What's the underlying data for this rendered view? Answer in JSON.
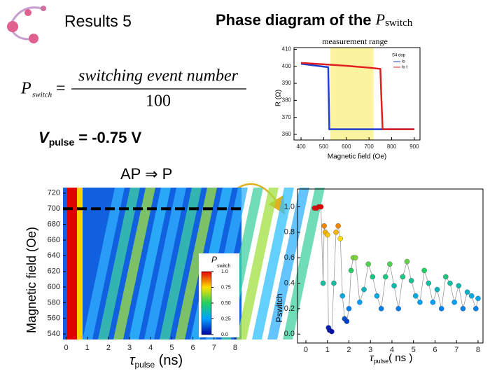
{
  "header": {
    "title": "Results 5",
    "heading": "Phase diagram of the ",
    "heading_var": "P",
    "heading_sub": "switch"
  },
  "formula": {
    "lhs": "P",
    "lhs_sub": "switch",
    "equals": "=",
    "numerator": "switching event number",
    "denominator": "100"
  },
  "vpulse": {
    "symbol": "V",
    "sub": "pulse",
    "rest": "= -0.75 V"
  },
  "transition": "AP ⇒ P",
  "rh_plot": {
    "type": "line",
    "title": "measurement range",
    "x_label": "Magnetic field (Oe)",
    "y_label": "R (Ω)",
    "legend_title": "S4 dop",
    "range": [
      530,
      720
    ],
    "xlim": [
      369,
      925
    ],
    "ylim": [
      356.7,
      411
    ],
    "xticks": [
      400,
      500,
      600,
      700,
      800,
      900
    ],
    "yticks": [
      360,
      370,
      380,
      390,
      400,
      410
    ],
    "series": [
      {
        "name": "lo",
        "color": "#1f3fd0",
        "x": [
          400,
          520,
          525,
          530,
          600,
          700,
          800,
          900
        ],
        "values": [
          401.5,
          399.5,
          363,
          363,
          363,
          363,
          363,
          363
        ]
      },
      {
        "name": "lo t",
        "color": "#e02020",
        "x": [
          400,
          500,
          600,
          700,
          750,
          755,
          760,
          800,
          900
        ],
        "values": [
          402,
          401.2,
          400.3,
          399.2,
          398.5,
          380,
          363,
          363,
          363
        ]
      }
    ]
  },
  "heatmap": {
    "type": "heatmap",
    "x_label": "τ",
    "x_label_sub": "pulse",
    "x_label_unit": " (ns)",
    "y_label": "Magnetic field (Oe)",
    "colorbar_title": "P",
    "colorbar_sub": "switch",
    "marker": 700,
    "xlim": [
      -0.15,
      8.3
    ],
    "ylim": [
      533,
      727
    ],
    "xticks": [
      0,
      1,
      2,
      3,
      4,
      5,
      6,
      7,
      8
    ],
    "yticks": [
      540,
      560,
      580,
      600,
      620,
      640,
      660,
      680,
      700,
      720
    ],
    "cticks": [
      {
        "value": 0,
        "label": "0.0"
      },
      0.25,
      {
        "value": 0.5,
        "label": "0.50"
      },
      0.75,
      {
        "value": 1,
        "label": "1.0"
      }
    ]
  },
  "scatter": {
    "type": "scatter",
    "x_label": "τ",
    "x_label_sub": "pulse",
    "x_label_unit": "( ns )",
    "y_label": "Pswitch",
    "xlim": [
      -0.39,
      8.23
    ],
    "ylim": [
      -0.07,
      1.14
    ],
    "xticks": [
      0,
      1,
      2,
      3,
      4,
      5,
      6,
      7,
      8
    ],
    "yticks": [
      {
        "value": 0,
        "label": "0.0"
      },
      0.2,
      0.4,
      0.6,
      0.8,
      {
        "value": 1,
        "label": "1.0"
      }
    ],
    "x": [
      0.4,
      0.5,
      0.6,
      0.7,
      0.8,
      0.85,
      0.9,
      1.0,
      1.05,
      1.1,
      1.2,
      1.3,
      1.4,
      1.5,
      1.6,
      1.7,
      1.8,
      1.9,
      2.0,
      2.1,
      2.2,
      2.3,
      2.5,
      2.7,
      2.9,
      3.1,
      3.3,
      3.5,
      3.7,
      3.9,
      4.1,
      4.3,
      4.5,
      4.7,
      4.9,
      5.1,
      5.3,
      5.5,
      5.7,
      5.9,
      6.1,
      6.3,
      6.5,
      6.7,
      6.9,
      7.1,
      7.3,
      7.5,
      7.7,
      7.9,
      8.0
    ],
    "values": [
      0.99,
      0.99,
      1.0,
      1.0,
      0.4,
      0.85,
      0.8,
      0.78,
      0.05,
      0.03,
      0.02,
      0.4,
      0.8,
      0.85,
      0.75,
      0.3,
      0.12,
      0.1,
      0.2,
      0.5,
      0.6,
      0.6,
      0.25,
      0.35,
      0.55,
      0.45,
      0.3,
      0.2,
      0.45,
      0.55,
      0.38,
      0.2,
      0.45,
      0.57,
      0.42,
      0.3,
      0.25,
      0.5,
      0.4,
      0.25,
      0.35,
      0.2,
      0.45,
      0.4,
      0.25,
      0.38,
      0.2,
      0.33,
      0.3,
      0.2,
      0.28
    ]
  }
}
